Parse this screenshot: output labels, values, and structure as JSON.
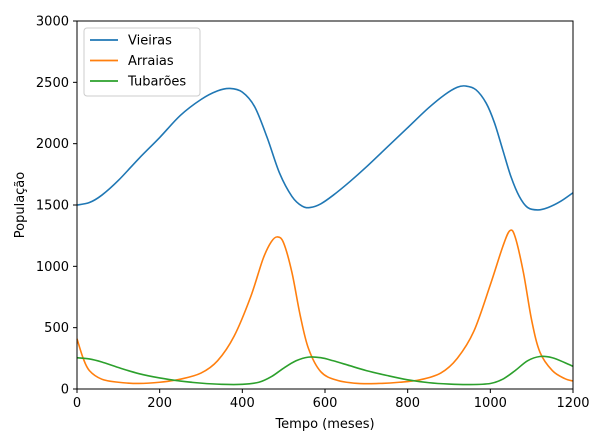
{
  "chart_data": {
    "type": "line",
    "title": "",
    "xlabel": "Tempo (meses)",
    "ylabel": "População",
    "xlim": [
      0,
      1200
    ],
    "ylim": [
      0,
      3000
    ],
    "xticks": [
      0,
      200,
      400,
      600,
      800,
      1000,
      1200
    ],
    "yticks": [
      0,
      500,
      1000,
      1500,
      2000,
      2500,
      3000
    ],
    "grid": false,
    "legend_position": "top-left",
    "series": [
      {
        "name": "Vieiras",
        "color": "#1f77b4",
        "points": [
          [
            0,
            1500
          ],
          [
            30,
            1520
          ],
          [
            60,
            1580
          ],
          [
            100,
            1700
          ],
          [
            150,
            1880
          ],
          [
            200,
            2050
          ],
          [
            250,
            2230
          ],
          [
            300,
            2360
          ],
          [
            340,
            2430
          ],
          [
            370,
            2450
          ],
          [
            400,
            2420
          ],
          [
            430,
            2300
          ],
          [
            460,
            2050
          ],
          [
            490,
            1760
          ],
          [
            520,
            1570
          ],
          [
            545,
            1490
          ],
          [
            565,
            1480
          ],
          [
            590,
            1510
          ],
          [
            620,
            1580
          ],
          [
            660,
            1690
          ],
          [
            700,
            1810
          ],
          [
            750,
            1970
          ],
          [
            800,
            2130
          ],
          [
            850,
            2290
          ],
          [
            890,
            2400
          ],
          [
            920,
            2460
          ],
          [
            940,
            2470
          ],
          [
            965,
            2440
          ],
          [
            990,
            2330
          ],
          [
            1010,
            2170
          ],
          [
            1030,
            1950
          ],
          [
            1050,
            1730
          ],
          [
            1070,
            1570
          ],
          [
            1090,
            1480
          ],
          [
            1115,
            1460
          ],
          [
            1140,
            1480
          ],
          [
            1170,
            1530
          ],
          [
            1200,
            1600
          ]
        ]
      },
      {
        "name": "Arraias",
        "color": "#ff7f0e",
        "points": [
          [
            0,
            410
          ],
          [
            15,
            250
          ],
          [
            30,
            150
          ],
          [
            60,
            80
          ],
          [
            100,
            55
          ],
          [
            150,
            45
          ],
          [
            200,
            55
          ],
          [
            250,
            80
          ],
          [
            300,
            130
          ],
          [
            340,
            230
          ],
          [
            380,
            430
          ],
          [
            420,
            750
          ],
          [
            450,
            1060
          ],
          [
            470,
            1200
          ],
          [
            485,
            1240
          ],
          [
            500,
            1190
          ],
          [
            520,
            950
          ],
          [
            540,
            600
          ],
          [
            560,
            330
          ],
          [
            590,
            140
          ],
          [
            630,
            70
          ],
          [
            680,
            45
          ],
          [
            730,
            45
          ],
          [
            780,
            55
          ],
          [
            830,
            75
          ],
          [
            880,
            130
          ],
          [
            920,
            250
          ],
          [
            960,
            470
          ],
          [
            1000,
            850
          ],
          [
            1030,
            1160
          ],
          [
            1047,
            1290
          ],
          [
            1060,
            1240
          ],
          [
            1080,
            950
          ],
          [
            1100,
            560
          ],
          [
            1120,
            300
          ],
          [
            1150,
            150
          ],
          [
            1180,
            85
          ],
          [
            1200,
            65
          ]
        ]
      },
      {
        "name": "Tubarões",
        "color": "#2ca02c",
        "points": [
          [
            0,
            255
          ],
          [
            30,
            245
          ],
          [
            60,
            220
          ],
          [
            100,
            175
          ],
          [
            150,
            125
          ],
          [
            200,
            90
          ],
          [
            250,
            65
          ],
          [
            300,
            48
          ],
          [
            350,
            38
          ],
          [
            400,
            38
          ],
          [
            440,
            55
          ],
          [
            470,
            100
          ],
          [
            500,
            170
          ],
          [
            530,
            230
          ],
          [
            560,
            260
          ],
          [
            590,
            255
          ],
          [
            620,
            230
          ],
          [
            660,
            190
          ],
          [
            700,
            150
          ],
          [
            750,
            110
          ],
          [
            800,
            75
          ],
          [
            850,
            52
          ],
          [
            900,
            40
          ],
          [
            950,
            36
          ],
          [
            1000,
            45
          ],
          [
            1030,
            80
          ],
          [
            1060,
            150
          ],
          [
            1090,
            230
          ],
          [
            1120,
            265
          ],
          [
            1150,
            255
          ],
          [
            1180,
            215
          ],
          [
            1200,
            185
          ]
        ]
      }
    ]
  }
}
